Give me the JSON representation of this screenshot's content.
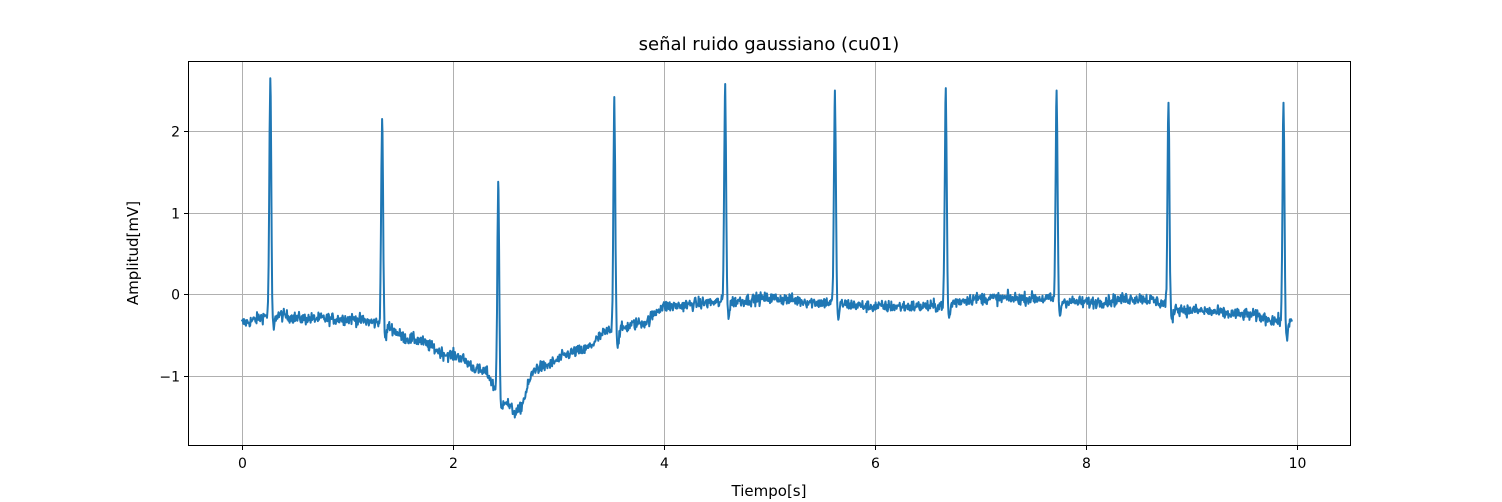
{
  "chart_data": {
    "type": "line",
    "title": "señal ruido gaussiano (cu01)",
    "xlabel": "Tiempo[s]",
    "ylabel": "Amplitud[mV]",
    "xlim": [
      -0.5,
      10.5
    ],
    "ylim": [
      -1.85,
      2.85
    ],
    "xticks": [
      0,
      2,
      4,
      6,
      8,
      10
    ],
    "xtick_labels": [
      "0",
      "2",
      "4",
      "6",
      "8",
      "10"
    ],
    "yticks": [
      -1,
      0,
      1,
      2
    ],
    "ytick_labels": [
      "−1",
      "0",
      "1",
      "2"
    ],
    "grid": true,
    "line_color": "#1f77b4",
    "series": [
      {
        "noise_amplitude": 0.07,
        "baseline_knots": {
          "x": [
            0,
            0.3,
            0.6,
            1.0,
            1.3,
            1.6,
            2.0,
            2.3,
            2.45,
            2.6,
            2.8,
            3.2,
            3.5,
            3.8,
            4.0,
            4.5,
            5.0,
            5.5,
            6.0,
            6.5,
            7.0,
            7.5,
            8.0,
            8.5,
            9.0,
            9.5,
            9.95
          ],
          "y": [
            -0.35,
            -0.25,
            -0.3,
            -0.3,
            -0.35,
            -0.55,
            -0.75,
            -0.95,
            -1.25,
            -1.45,
            -0.9,
            -0.7,
            -0.45,
            -0.35,
            -0.15,
            -0.1,
            -0.05,
            -0.1,
            -0.15,
            -0.15,
            -0.05,
            -0.05,
            -0.1,
            -0.05,
            -0.2,
            -0.25,
            -0.35
          ]
        },
        "peaks": [
          {
            "x": 0.27,
            "y": 2.65
          },
          {
            "x": 1.33,
            "y": 2.15
          },
          {
            "x": 2.43,
            "y": 1.38
          },
          {
            "x": 3.53,
            "y": 2.42
          },
          {
            "x": 4.58,
            "y": 2.58
          },
          {
            "x": 5.62,
            "y": 2.5
          },
          {
            "x": 6.67,
            "y": 2.53
          },
          {
            "x": 7.72,
            "y": 2.5
          },
          {
            "x": 8.78,
            "y": 2.35
          },
          {
            "x": 9.87,
            "y": 2.35
          }
        ]
      }
    ]
  }
}
